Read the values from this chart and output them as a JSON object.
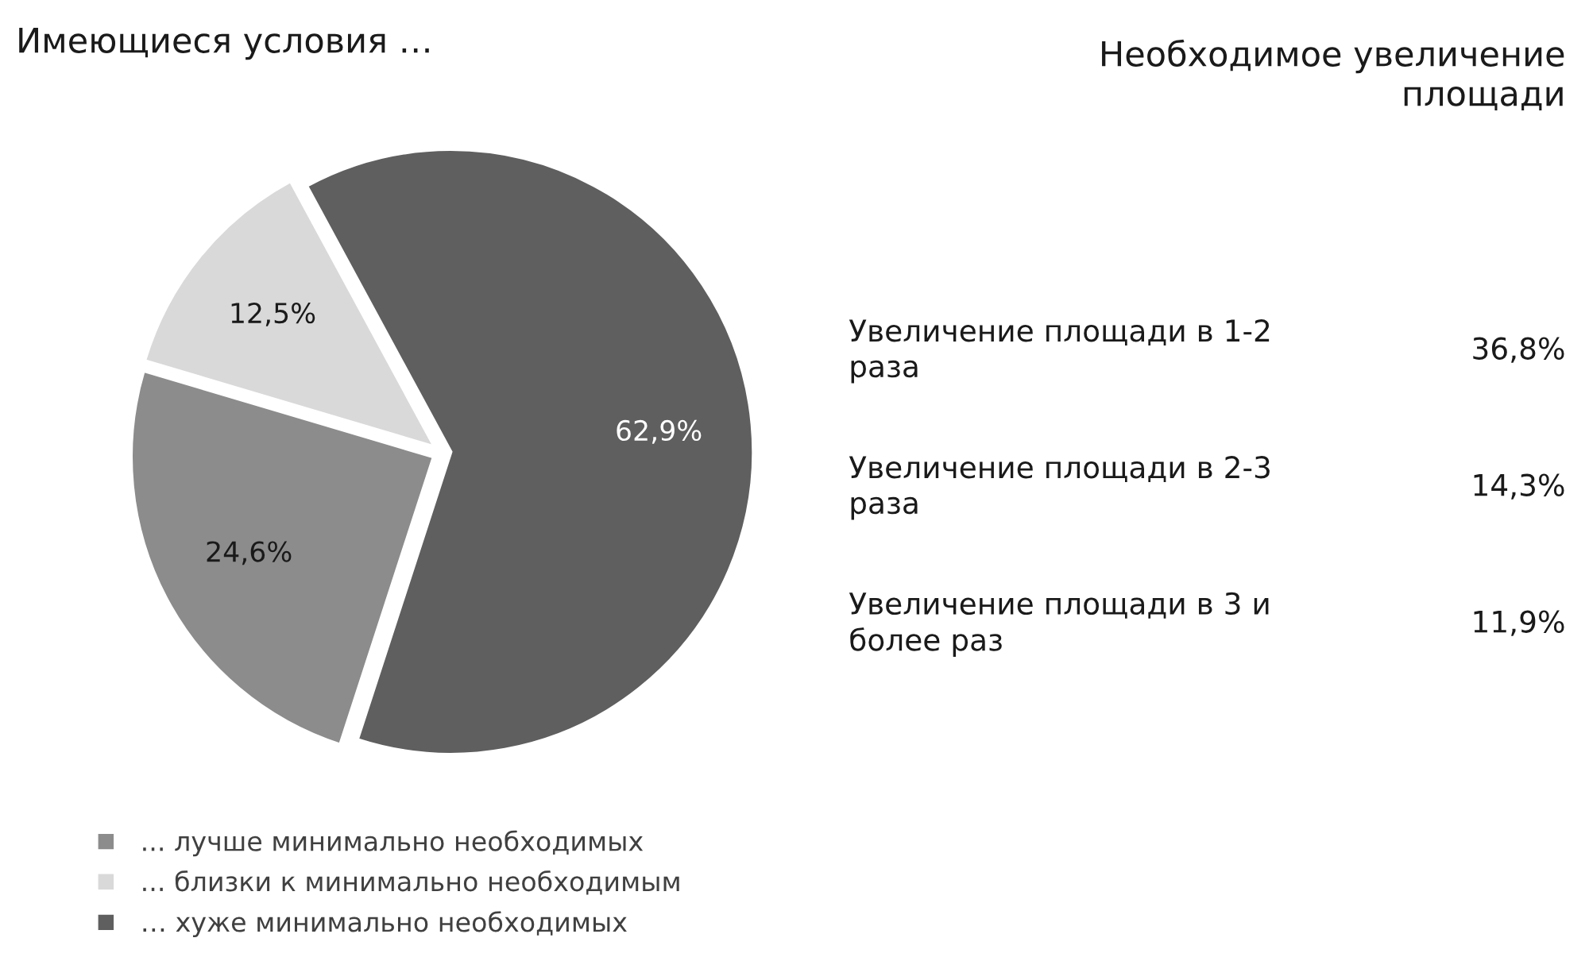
{
  "chart_data": [
    {
      "type": "pie",
      "title": "Имеющиеся условия …",
      "categories": [
        "... лучше минимально необходимых",
        "... близки к минимально необходимым",
        "… хуже минимально необходимых"
      ],
      "values": [
        24.6,
        12.5,
        62.9
      ],
      "colors": [
        "#8c8c8c",
        "#d9d9d9",
        "#5f5f5f"
      ],
      "value_labels": [
        "24,6%",
        "12,5%",
        "62,9%"
      ],
      "legend": "bottom left"
    },
    {
      "type": "other",
      "title": "Необходимое увеличение\nплощади",
      "categories": [
        "Увеличение площади в 1-2\nраза",
        "Увеличение площади в 2-3\nраза",
        "Увеличение площади в 3 и\nболее раз"
      ],
      "values": [
        36.8,
        14.3,
        11.9
      ],
      "value_labels": [
        "36,8%",
        "14,3%",
        "11,9%"
      ]
    }
  ]
}
